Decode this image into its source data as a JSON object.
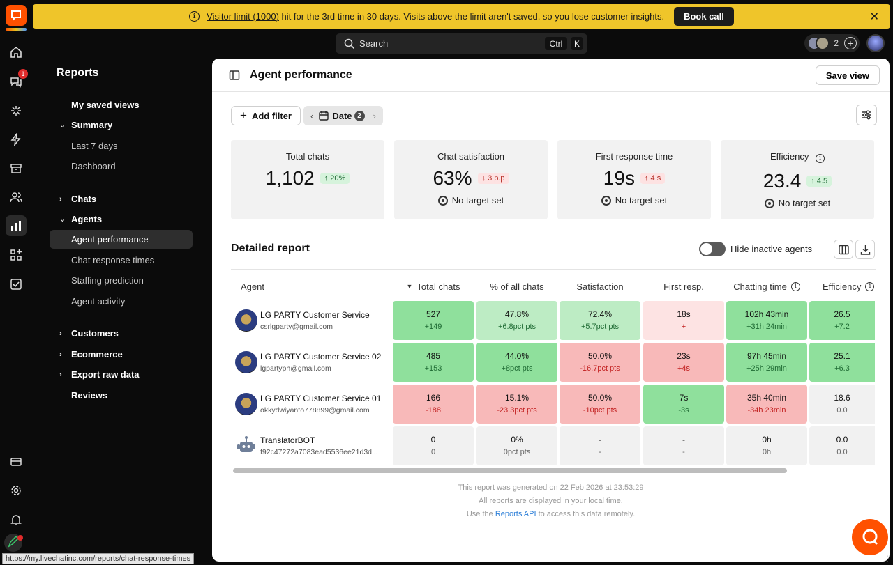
{
  "banner": {
    "link_text": "Visitor limit (1000)",
    "message": " hit for the 3rd time in 30 days. Visits above the limit aren't saved, so you lose customer insights.",
    "cta": "Book call"
  },
  "rail": {
    "chats_badge": "1"
  },
  "search": {
    "placeholder": "Search",
    "shortcut_key1": "Ctrl",
    "shortcut_key2": "K"
  },
  "team": {
    "count": "2"
  },
  "sidebar": {
    "title": "Reports",
    "items": [
      {
        "label": "My saved views"
      },
      {
        "label": "Summary"
      },
      {
        "label": "Last 7 days"
      },
      {
        "label": "Dashboard"
      },
      {
        "label": "Chats"
      },
      {
        "label": "Agents"
      },
      {
        "label": "Agent performance"
      },
      {
        "label": "Chat response times"
      },
      {
        "label": "Staffing prediction"
      },
      {
        "label": "Agent activity"
      },
      {
        "label": "Customers"
      },
      {
        "label": "Ecommerce"
      },
      {
        "label": "Export raw data"
      },
      {
        "label": "Reviews"
      }
    ]
  },
  "status_url": "https://my.livechatinc.com/reports/chat-response-times",
  "page": {
    "title": "Agent performance",
    "save_view": "Save view",
    "add_filter": "Add filter",
    "date_label": "Date",
    "date_count": "2"
  },
  "kpis": [
    {
      "label": "Total chats",
      "value": "1,102",
      "delta": "20%",
      "trend": "up",
      "target": ""
    },
    {
      "label": "Chat satisfaction",
      "value": "63%",
      "delta": "3 p.p",
      "trend": "down",
      "target": "No target set"
    },
    {
      "label": "First response time",
      "value": "19s",
      "delta": "4 s",
      "trend": "up-bad",
      "target": "No target set"
    },
    {
      "label": "Efficiency",
      "value": "23.4",
      "delta": "4.5",
      "trend": "up",
      "target": "No target set"
    }
  ],
  "report": {
    "title": "Detailed report",
    "toggle_label": "Hide inactive agents",
    "columns": [
      "Agent",
      "Total chats",
      "% of all chats",
      "Satisfaction",
      "First resp.",
      "Chatting time",
      "Efficiency"
    ],
    "rows": [
      {
        "name": "LG PARTY Customer Service",
        "email": "csrlgparty@gmail.com",
        "cells": [
          {
            "v": "527",
            "d": "+149",
            "tone": "g"
          },
          {
            "v": "47.8%",
            "d": "+6.8pct pts",
            "tone": "lg"
          },
          {
            "v": "72.4%",
            "d": "+5.7pct pts",
            "tone": "lg"
          },
          {
            "v": "18s",
            "d": "+",
            "tone": "lr"
          },
          {
            "v": "102h 43min",
            "d": "+31h 24min",
            "tone": "g"
          },
          {
            "v": "26.5",
            "d": "+7.2",
            "tone": "g"
          }
        ]
      },
      {
        "name": "LG PARTY Customer Service 02",
        "email": "lgpartyph@gmail.com",
        "cells": [
          {
            "v": "485",
            "d": "+153",
            "tone": "g"
          },
          {
            "v": "44.0%",
            "d": "+8pct pts",
            "tone": "g"
          },
          {
            "v": "50.0%",
            "d": "-16.7pct pts",
            "tone": "r"
          },
          {
            "v": "23s",
            "d": "+4s",
            "tone": "r"
          },
          {
            "v": "97h 45min",
            "d": "+25h 29min",
            "tone": "g"
          },
          {
            "v": "25.1",
            "d": "+6.3",
            "tone": "g"
          }
        ]
      },
      {
        "name": "LG PARTY Customer Service 01",
        "email": "okkydwiyanto778899@gmail.com",
        "cells": [
          {
            "v": "166",
            "d": "-188",
            "tone": "r"
          },
          {
            "v": "15.1%",
            "d": "-23.3pct pts",
            "tone": "r"
          },
          {
            "v": "50.0%",
            "d": "-10pct pts",
            "tone": "r"
          },
          {
            "v": "7s",
            "d": "-3s",
            "tone": "g"
          },
          {
            "v": "35h 40min",
            "d": "-34h 23min",
            "tone": "r"
          },
          {
            "v": "18.6",
            "d": "0.0",
            "tone": "n"
          }
        ]
      },
      {
        "name": "TranslatorBOT",
        "email": "f92c47272a7083ead5536ee21d3d...",
        "cells": [
          {
            "v": "0",
            "d": "0",
            "tone": "n"
          },
          {
            "v": "0%",
            "d": "0pct pts",
            "tone": "n"
          },
          {
            "v": "-",
            "d": "-",
            "tone": "n"
          },
          {
            "v": "-",
            "d": "-",
            "tone": "n"
          },
          {
            "v": "0h",
            "d": "0h",
            "tone": "n"
          },
          {
            "v": "0.0",
            "d": "0.0",
            "tone": "n"
          }
        ]
      }
    ],
    "generated": "This report was generated on 22 Feb 2026 at 23:53:29",
    "local_time": "All reports are displayed in your local time.",
    "api_prefix": "Use the ",
    "api_link": "Reports API",
    "api_suffix": " to access this data remotely."
  },
  "colors": {
    "banner": "#efc52a",
    "brand": "#ff5100",
    "good": "#8fe09c",
    "bad": "#f8b9b9"
  }
}
